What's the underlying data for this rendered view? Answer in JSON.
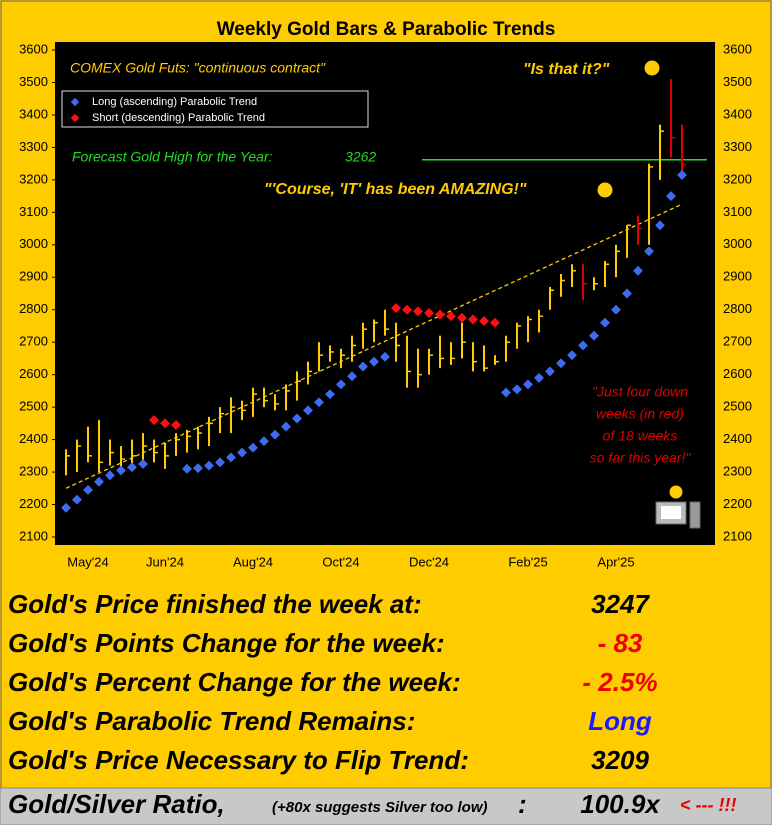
{
  "chart_data": {
    "type": "ohlc",
    "title": "Weekly Gold Bars & Parabolic Trends",
    "subtitle": "COMEX Gold Futs:  \"continuous contract\"",
    "categories": [
      null,
      null,
      "May'24",
      null,
      null,
      null,
      null,
      null,
      null,
      "Jun'24",
      null,
      null,
      null,
      null,
      null,
      null,
      null,
      "Aug'24",
      null,
      null,
      null,
      null,
      null,
      null,
      null,
      "Oct'24",
      null,
      null,
      null,
      null,
      null,
      null,
      null,
      "Dec'24",
      null,
      null,
      null,
      null,
      null,
      null,
      null,
      null,
      "Feb'25",
      null,
      null,
      null,
      null,
      null,
      null,
      null,
      "Apr'25",
      null,
      null,
      null,
      null,
      null,
      null
    ],
    "bars": {
      "high": [
        2370,
        2400,
        2440,
        2460,
        2400,
        2380,
        2400,
        2420,
        2400,
        2390,
        2420,
        2430,
        2440,
        2470,
        2500,
        2530,
        2520,
        2560,
        2560,
        2540,
        2570,
        2610,
        2640,
        2700,
        2690,
        2680,
        2720,
        2760,
        2770,
        2800,
        2760,
        2720,
        2680,
        2680,
        2720,
        2700,
        2760,
        2700,
        2690,
        2660,
        2720,
        2760,
        2780,
        2800,
        2870,
        2910,
        2940,
        2940,
        2900,
        2950,
        3000,
        3060,
        3090,
        3250,
        3370,
        3510,
        3370
      ],
      "low": [
        2290,
        2300,
        2330,
        2300,
        2320,
        2310,
        2320,
        2330,
        2330,
        2310,
        2350,
        2360,
        2370,
        2380,
        2420,
        2420,
        2460,
        2470,
        2500,
        2490,
        2490,
        2520,
        2570,
        2610,
        2640,
        2620,
        2640,
        2680,
        2700,
        2720,
        2640,
        2560,
        2560,
        2600,
        2620,
        2630,
        2650,
        2610,
        2610,
        2630,
        2640,
        2680,
        2700,
        2730,
        2800,
        2840,
        2870,
        2830,
        2860,
        2870,
        2900,
        2960,
        3000,
        3000,
        3200,
        3270,
        3210
      ],
      "close": [
        2350,
        2380,
        2350,
        2330,
        2360,
        2340,
        2350,
        2380,
        2360,
        2350,
        2400,
        2410,
        2420,
        2450,
        2480,
        2500,
        2490,
        2540,
        2520,
        2510,
        2550,
        2580,
        2610,
        2660,
        2670,
        2660,
        2690,
        2740,
        2760,
        2740,
        2690,
        2610,
        2600,
        2660,
        2650,
        2650,
        2700,
        2640,
        2620,
        2640,
        2700,
        2750,
        2770,
        2780,
        2860,
        2890,
        2920,
        2880,
        2880,
        2940,
        2980,
        3060,
        3050,
        3240,
        3350,
        3330,
        3247
      ],
      "colors": [
        "#ffcc00",
        "#ffcc00",
        "#ffcc00",
        "#ffcc00",
        "#ffcc00",
        "#ffcc00",
        "#ffcc00",
        "#ffcc00",
        "#ffcc00",
        "#ffcc00",
        "#ffcc00",
        "#ffcc00",
        "#ffcc00",
        "#ffcc00",
        "#ffcc00",
        "#ffcc00",
        "#ffcc00",
        "#ffcc00",
        "#ffcc00",
        "#ffcc00",
        "#ffcc00",
        "#ffcc00",
        "#ffcc00",
        "#ffcc00",
        "#ffcc00",
        "#ffcc00",
        "#ffcc00",
        "#ffcc00",
        "#ffcc00",
        "#ffcc00",
        "#ffcc00",
        "#ffcc00",
        "#ffcc00",
        "#ffcc00",
        "#ffcc00",
        "#ffcc00",
        "#ffcc00",
        "#ffcc00",
        "#ffcc00",
        "#ffcc00",
        "#ffcc00",
        "#ffcc00",
        "#ffcc00",
        "#ffcc00",
        "#ffcc00",
        "#ffcc00",
        "#ffcc00",
        "#e00000",
        "#ffcc00",
        "#ffcc00",
        "#ffcc00",
        "#ffcc00",
        "#e00000",
        "#ffcc00",
        "#ffcc00",
        "#e00000",
        "#e00000"
      ]
    },
    "series": [
      {
        "name": "Long (ascending) Parabolic Trend",
        "color": "#3d6cf0",
        "values": [
          2190,
          2215,
          2245,
          2270,
          2290,
          2305,
          2315,
          2325,
          null,
          null,
          null,
          2310,
          2312,
          2320,
          2330,
          2345,
          2360,
          2375,
          2395,
          2415,
          2440,
          2465,
          2490,
          2515,
          2540,
          2570,
          2595,
          2625,
          2640,
          2655,
          null,
          null,
          null,
          null,
          null,
          null,
          null,
          null,
          null,
          null,
          2545,
          2555,
          2570,
          2590,
          2610,
          2635,
          2660,
          2690,
          2720,
          2760,
          2800,
          2850,
          2920,
          2980,
          3060,
          3150,
          3215
        ]
      },
      {
        "name": "Short (descending) Parabolic Trend",
        "color": "#ff1010",
        "values": [
          null,
          null,
          null,
          null,
          null,
          null,
          null,
          null,
          2460,
          2450,
          2445,
          null,
          null,
          null,
          null,
          null,
          null,
          null,
          null,
          null,
          null,
          null,
          null,
          null,
          null,
          null,
          null,
          null,
          null,
          null,
          2805,
          2800,
          2795,
          2790,
          2785,
          2780,
          2775,
          2770,
          2765,
          2760,
          null,
          null,
          null,
          null,
          null,
          null,
          null,
          null,
          null,
          null,
          null,
          null,
          null,
          null,
          null,
          null,
          null
        ]
      }
    ],
    "trend_line": {
      "start": 2250,
      "end": 3125,
      "color": "#ffcc00"
    },
    "forecast": {
      "label": "Forecast Gold High for the Year:",
      "value": 3262,
      "color": "#22dd22"
    },
    "annotations": [
      "\"Is that it?\"",
      "\"'Course, 'IT' has been AMAZING!\""
    ],
    "note": [
      "\"Just four down",
      "weeks (in red)",
      "of 18 weeks",
      "so far this year!\""
    ],
    "ylim": [
      2100,
      3600
    ],
    "yticks": [
      2100,
      2200,
      2300,
      2400,
      2500,
      2600,
      2700,
      2800,
      2900,
      3000,
      3100,
      3200,
      3300,
      3400,
      3500,
      3600
    ],
    "grid": false
  },
  "table": {
    "rows": [
      {
        "label": "Gold's Price finished the week at:",
        "value": "3247",
        "color": "#000000"
      },
      {
        "label": "Gold's Points Change for the week:",
        "value": "- 83",
        "color": "#ee0000"
      },
      {
        "label": "Gold's Percent Change for the week:",
        "value": "- 2.5%",
        "color": "#ee0000"
      },
      {
        "label": "Gold's Parabolic Trend Remains:",
        "value": "Long",
        "color": "#1a1aff"
      },
      {
        "label": "Gold's Price Necessary to Flip Trend:",
        "value": "3209",
        "color": "#000000"
      }
    ],
    "last_row": {
      "label": "Gold/Silver Ratio,",
      "note": "(+80x suggests Silver too low)",
      "colon": ":",
      "value": "100.9x",
      "arrow": "< --- !!!"
    }
  }
}
